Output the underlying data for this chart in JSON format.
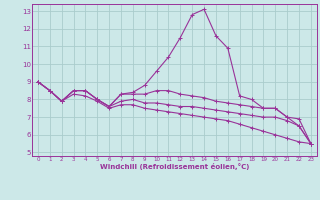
{
  "title": "",
  "xlabel": "Windchill (Refroidissement éolien,°C)",
  "ylabel": "",
  "bg_color": "#cce8e8",
  "grid_color": "#aacccc",
  "line_color": "#993399",
  "xlim": [
    -0.5,
    23.5
  ],
  "ylim": [
    4.8,
    13.4
  ],
  "yticks": [
    5,
    6,
    7,
    8,
    9,
    10,
    11,
    12,
    13
  ],
  "xticks": [
    0,
    1,
    2,
    3,
    4,
    5,
    6,
    7,
    8,
    9,
    10,
    11,
    12,
    13,
    14,
    15,
    16,
    17,
    18,
    19,
    20,
    21,
    22,
    23
  ],
  "series": [
    {
      "x": [
        0,
        1,
        2,
        3,
        4,
        5,
        6,
        7,
        8,
        9,
        10,
        11,
        12,
        13,
        14,
        15,
        16,
        17,
        18,
        19,
        20,
        21,
        22,
        23
      ],
      "y": [
        9.0,
        8.5,
        7.9,
        8.5,
        8.5,
        8.0,
        7.6,
        8.3,
        8.4,
        8.8,
        9.6,
        10.4,
        11.5,
        12.8,
        13.1,
        11.6,
        10.9,
        8.2,
        8.0,
        7.5,
        7.5,
        7.0,
        6.5,
        5.5
      ]
    },
    {
      "x": [
        0,
        1,
        2,
        3,
        4,
        5,
        6,
        7,
        8,
        9,
        10,
        11,
        12,
        13,
        14,
        15,
        16,
        17,
        18,
        19,
        20,
        21,
        22,
        23
      ],
      "y": [
        9.0,
        8.5,
        7.9,
        8.5,
        8.5,
        8.0,
        7.6,
        8.3,
        8.3,
        8.3,
        8.5,
        8.5,
        8.3,
        8.2,
        8.1,
        7.9,
        7.8,
        7.7,
        7.6,
        7.5,
        7.5,
        7.0,
        6.9,
        5.5
      ]
    },
    {
      "x": [
        0,
        1,
        2,
        3,
        4,
        5,
        6,
        7,
        8,
        9,
        10,
        11,
        12,
        13,
        14,
        15,
        16,
        17,
        18,
        19,
        20,
        21,
        22,
        23
      ],
      "y": [
        9.0,
        8.5,
        7.9,
        8.5,
        8.5,
        8.0,
        7.6,
        7.9,
        8.0,
        7.8,
        7.8,
        7.7,
        7.6,
        7.6,
        7.5,
        7.4,
        7.3,
        7.2,
        7.1,
        7.0,
        7.0,
        6.8,
        6.5,
        5.5
      ]
    },
    {
      "x": [
        0,
        1,
        2,
        3,
        4,
        5,
        6,
        7,
        8,
        9,
        10,
        11,
        12,
        13,
        14,
        15,
        16,
        17,
        18,
        19,
        20,
        21,
        22,
        23
      ],
      "y": [
        9.0,
        8.5,
        7.9,
        8.3,
        8.2,
        7.9,
        7.5,
        7.7,
        7.7,
        7.5,
        7.4,
        7.3,
        7.2,
        7.1,
        7.0,
        6.9,
        6.8,
        6.6,
        6.4,
        6.2,
        6.0,
        5.8,
        5.6,
        5.5
      ]
    }
  ]
}
